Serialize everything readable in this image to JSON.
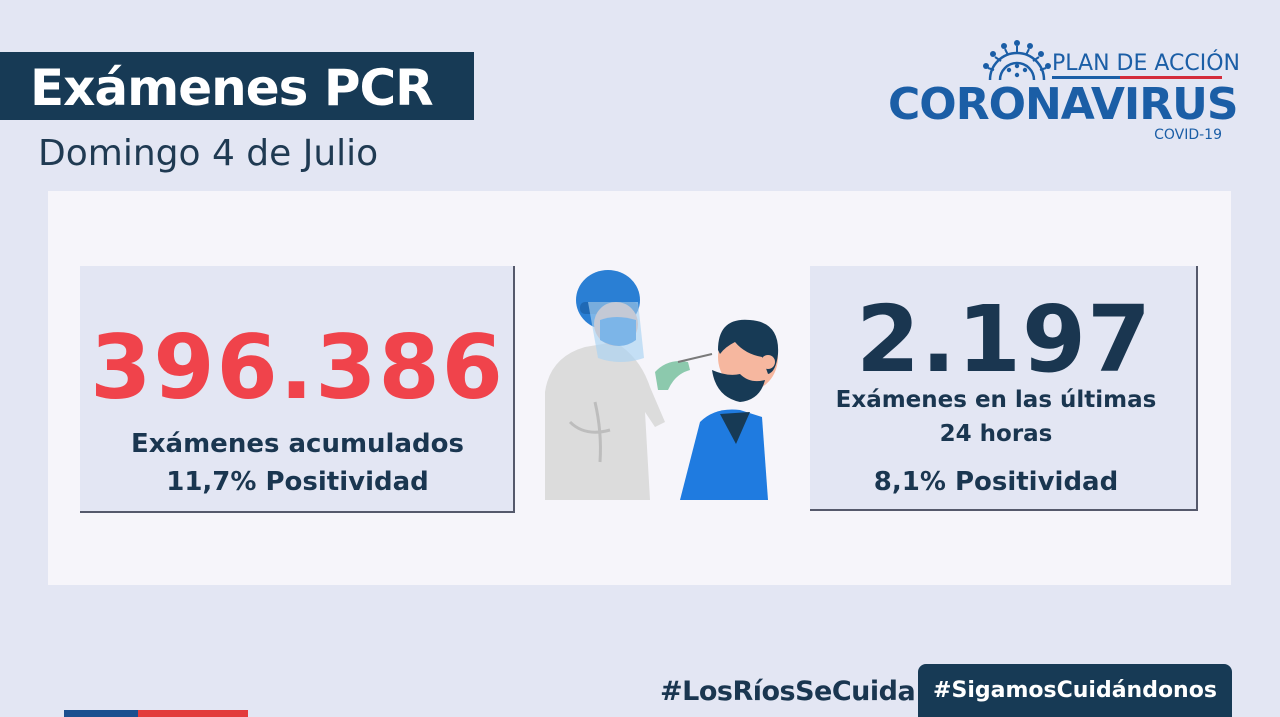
{
  "header": {
    "title": "Exámenes PCR",
    "date": "Domingo 4 de Julio"
  },
  "logo": {
    "plan": "PLAN DE ACCIÓN",
    "name": "CORONAVIRUS",
    "sub": "COVID-19",
    "icon": "virus-icon"
  },
  "left_card": {
    "number": "396.386",
    "label": "Exámenes acumulados",
    "positivity": "11,7% Positividad"
  },
  "right_card": {
    "number": "2.197",
    "label_line1": "Exámenes en las últimas",
    "label_line2": "24 horas",
    "positivity": "8,1% Positividad"
  },
  "footer": {
    "hashtag_1": "#LosRíosSeCuida",
    "hashtag_2": "#SigamosCuidándonos"
  },
  "colors": {
    "navy": "#173a55",
    "red_number": "#f0434b",
    "brand_blue": "#1b5ea6",
    "brand_red": "#d42c3b",
    "background": "#e3e6f3"
  }
}
